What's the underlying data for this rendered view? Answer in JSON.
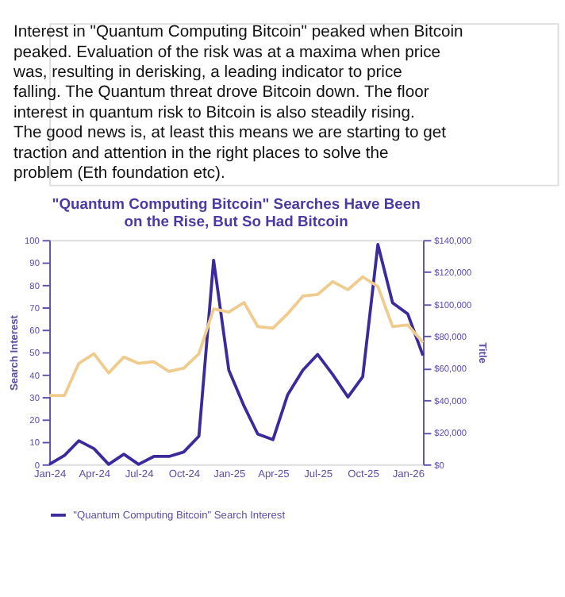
{
  "chart_data": {
    "type": "line",
    "title": [
      "\"Quantum Computing Bitcoin\" Searches Have Been",
      "on the Rise, But So Had Bitcoin"
    ],
    "annotations": [
      "Interest in \"Quantum Computing Bitcoin\" peaked when Bitcoin peaked. Evaluation of the risk was at a maxima when price was, resulting in derisking, a leading indicator to price falling. The Quantum threat drove Bitcoin down. The floor interest in quantum risk to Bitcoin is also steadily rising. The good news is, at least this means we are starting to get traction and attention in the right places to solve the problem (Eth foundation etc)."
    ],
    "x": [
      "2024-01",
      "2024-02",
      "2024-03",
      "2024-04",
      "2024-05",
      "2024-06",
      "2024-07",
      "2024-08",
      "2024-09",
      "2024-10",
      "2024-11",
      "2024-12",
      "2025-01",
      "2025-02",
      "2025-03",
      "2025-04",
      "2025-05",
      "2025-06",
      "2025-07",
      "2025-08",
      "2025-09",
      "2025-10",
      "2025-11",
      "2025-12",
      "2026-01",
      "2026-02"
    ],
    "series": [
      {
        "name": "\"Quantum Computing Bitcoin\" Search Interest",
        "color": "#3b2a9c",
        "values": [
          0,
          4,
          10.5,
          7,
          0,
          4.5,
          0,
          3.5,
          3.5,
          5.5,
          12.5,
          91,
          42,
          26,
          13.5,
          11,
          31,
          42,
          49,
          40,
          30,
          39,
          98,
          72,
          67,
          48.5
        ]
      },
      {
        "color": "#f0cb8e",
        "axis": "y2",
        "values": [
          43000,
          43000,
          63000,
          69000,
          57000,
          67000,
          63000,
          64000,
          58000,
          60000,
          69000,
          97000,
          95000,
          101000,
          86000,
          85000,
          94000,
          105000,
          106000,
          114000,
          109000,
          117000,
          111000,
          86000,
          87000,
          76000
        ]
      }
    ],
    "ylabel": "Search Interest",
    "y2label": "Title",
    "ylim": [
      0,
      100
    ],
    "yticks": [
      0,
      10,
      20,
      30,
      40,
      50,
      60,
      70,
      80,
      90,
      100
    ],
    "y2lim": [
      0,
      140000
    ],
    "y2ticks": [
      {
        "value": 0,
        "label": "$0"
      },
      {
        "value": 20000,
        "label": "$20,000"
      },
      {
        "value": 40000,
        "label": "$40,000"
      },
      {
        "value": 60000,
        "label": "$60,000"
      },
      {
        "value": 80000,
        "label": "$80,000"
      },
      {
        "value": 100000,
        "label": "$100,000"
      },
      {
        "value": 120000,
        "label": "$120,000"
      },
      {
        "value": 140000,
        "label": "$140,000"
      }
    ],
    "xlim": [
      "2024-01",
      "2026-02"
    ],
    "xticks": [
      {
        "value": "2024-01",
        "label": "Jan-24"
      },
      {
        "value": "2024-04",
        "label": "Apr-24"
      },
      {
        "value": "2024-07",
        "label": "Jul-24"
      },
      {
        "value": "2024-10",
        "label": "Oct-24"
      },
      {
        "value": "2025-01",
        "label": "Jan-25"
      },
      {
        "value": "2025-04",
        "label": "Apr-25"
      },
      {
        "value": "2025-07",
        "label": "Jul-25"
      },
      {
        "value": "2025-10",
        "label": "Oct-25"
      },
      {
        "value": "2026-01",
        "label": "Jan-26"
      }
    ],
    "legend": "bottom",
    "grid": false,
    "line_style": "solid",
    "marker": "none"
  }
}
